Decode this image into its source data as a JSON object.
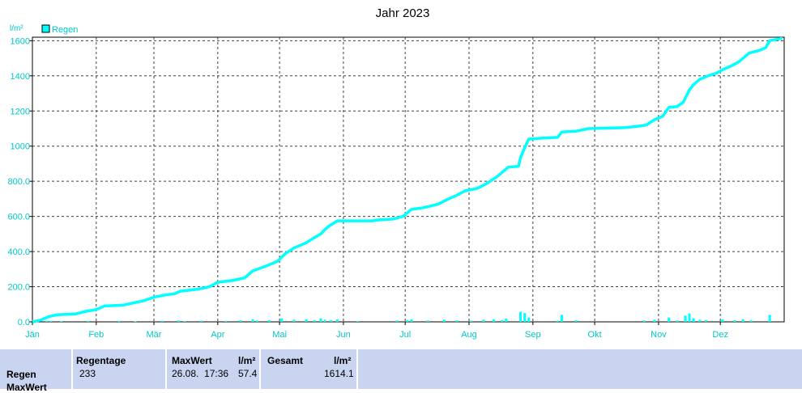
{
  "chart_data": {
    "type": "line",
    "title": "Jahr 2023",
    "ylabel": "l/m²",
    "legend": {
      "label": "Regen",
      "position": "top-left"
    },
    "series_name": "Regen",
    "x_tick_labels": [
      "Jän",
      "Feb",
      "Mär",
      "Apr",
      "Mai",
      "Jun",
      "Jul",
      "Aug",
      "Sep",
      "Okt",
      "Nov",
      "Dez"
    ],
    "y_tick_labels": [
      "0.0",
      "200.0",
      "400.0",
      "600.0",
      "800.0",
      "1000",
      "1200",
      "1400",
      "1600"
    ],
    "ylim": [
      0,
      1620
    ],
    "grid": true,
    "colors": {
      "series": "#00ffff",
      "axis_text": "#00c8c8",
      "grid": "#404040"
    },
    "cumulative_points": [
      [
        "2023-01-01",
        0
      ],
      [
        "2023-01-05",
        10
      ],
      [
        "2023-01-09",
        30
      ],
      [
        "2023-01-13",
        40
      ],
      [
        "2023-01-22",
        45
      ],
      [
        "2023-01-27",
        60
      ],
      [
        "2023-02-01",
        70
      ],
      [
        "2023-02-05",
        90
      ],
      [
        "2023-02-14",
        95
      ],
      [
        "2023-02-18",
        105
      ],
      [
        "2023-02-24",
        120
      ],
      [
        "2023-03-01",
        140
      ],
      [
        "2023-03-05",
        150
      ],
      [
        "2023-03-11",
        160
      ],
      [
        "2023-03-14",
        175
      ],
      [
        "2023-03-22",
        185
      ],
      [
        "2023-03-28",
        200
      ],
      [
        "2023-04-01",
        225
      ],
      [
        "2023-04-08",
        235
      ],
      [
        "2023-04-14",
        250
      ],
      [
        "2023-04-18",
        290
      ],
      [
        "2023-04-25",
        320
      ],
      [
        "2023-04-30",
        345
      ],
      [
        "2023-05-04",
        390
      ],
      [
        "2023-05-08",
        420
      ],
      [
        "2023-05-14",
        450
      ],
      [
        "2023-05-18",
        480
      ],
      [
        "2023-05-21",
        500
      ],
      [
        "2023-05-23",
        525
      ],
      [
        "2023-05-25",
        545
      ],
      [
        "2023-05-29",
        575
      ],
      [
        "2023-06-15",
        575
      ],
      [
        "2023-06-18",
        580
      ],
      [
        "2023-06-25",
        585
      ],
      [
        "2023-06-30",
        600
      ],
      [
        "2023-07-04",
        640
      ],
      [
        "2023-07-10",
        650
      ],
      [
        "2023-07-17",
        670
      ],
      [
        "2023-07-22",
        700
      ],
      [
        "2023-07-26",
        720
      ],
      [
        "2023-07-30",
        745
      ],
      [
        "2023-08-05",
        760
      ],
      [
        "2023-08-10",
        790
      ],
      [
        "2023-08-15",
        830
      ],
      [
        "2023-08-18",
        860
      ],
      [
        "2023-08-20",
        880
      ],
      [
        "2023-08-25",
        885
      ],
      [
        "2023-08-26",
        935
      ],
      [
        "2023-08-28",
        990
      ],
      [
        "2023-08-30",
        1040
      ],
      [
        "2023-09-05",
        1045
      ],
      [
        "2023-09-13",
        1050
      ],
      [
        "2023-09-15",
        1080
      ],
      [
        "2023-09-22",
        1085
      ],
      [
        "2023-09-28",
        1100
      ],
      [
        "2023-10-15",
        1105
      ],
      [
        "2023-10-20",
        1110
      ],
      [
        "2023-10-26",
        1120
      ],
      [
        "2023-10-30",
        1150
      ],
      [
        "2023-11-03",
        1170
      ],
      [
        "2023-11-06",
        1220
      ],
      [
        "2023-11-10",
        1225
      ],
      [
        "2023-11-13",
        1250
      ],
      [
        "2023-11-16",
        1320
      ],
      [
        "2023-11-18",
        1350
      ],
      [
        "2023-11-21",
        1380
      ],
      [
        "2023-11-25",
        1400
      ],
      [
        "2023-11-29",
        1415
      ],
      [
        "2023-12-03",
        1440
      ],
      [
        "2023-12-06",
        1455
      ],
      [
        "2023-12-10",
        1480
      ],
      [
        "2023-12-15",
        1530
      ],
      [
        "2023-12-20",
        1545
      ],
      [
        "2023-12-23",
        1560
      ],
      [
        "2023-12-25",
        1600
      ],
      [
        "2023-12-31",
        1614
      ]
    ],
    "daily_points": [
      [
        "2023-01-08",
        6
      ],
      [
        "2023-01-10",
        5
      ],
      [
        "2023-01-15",
        4
      ],
      [
        "2023-01-28",
        5
      ],
      [
        "2023-02-12",
        6
      ],
      [
        "2023-02-20",
        3
      ],
      [
        "2023-03-05",
        6
      ],
      [
        "2023-03-13",
        8
      ],
      [
        "2023-03-16",
        5
      ],
      [
        "2023-03-24",
        7
      ],
      [
        "2023-04-05",
        6
      ],
      [
        "2023-04-12",
        10
      ],
      [
        "2023-04-18",
        14
      ],
      [
        "2023-04-20",
        8
      ],
      [
        "2023-04-26",
        10
      ],
      [
        "2023-05-02",
        20
      ],
      [
        "2023-05-08",
        12
      ],
      [
        "2023-05-14",
        15
      ],
      [
        "2023-05-18",
        9
      ],
      [
        "2023-05-21",
        20
      ],
      [
        "2023-05-23",
        12
      ],
      [
        "2023-05-26",
        10
      ],
      [
        "2023-05-29",
        14
      ],
      [
        "2023-06-08",
        5
      ],
      [
        "2023-06-27",
        8
      ],
      [
        "2023-07-02",
        10
      ],
      [
        "2023-07-04",
        15
      ],
      [
        "2023-07-12",
        8
      ],
      [
        "2023-07-20",
        12
      ],
      [
        "2023-07-26",
        9
      ],
      [
        "2023-08-02",
        7
      ],
      [
        "2023-08-08",
        12
      ],
      [
        "2023-08-13",
        15
      ],
      [
        "2023-08-17",
        10
      ],
      [
        "2023-08-19",
        18
      ],
      [
        "2023-08-26",
        57.4
      ],
      [
        "2023-08-28",
        50
      ],
      [
        "2023-08-30",
        25
      ],
      [
        "2023-09-13",
        7
      ],
      [
        "2023-09-15",
        40
      ],
      [
        "2023-09-22",
        10
      ],
      [
        "2023-10-25",
        8
      ],
      [
        "2023-10-30",
        12
      ],
      [
        "2023-11-06",
        25
      ],
      [
        "2023-11-10",
        8
      ],
      [
        "2023-11-14",
        35
      ],
      [
        "2023-11-16",
        48
      ],
      [
        "2023-11-18",
        20
      ],
      [
        "2023-11-21",
        12
      ],
      [
        "2023-11-24",
        10
      ],
      [
        "2023-12-02",
        14
      ],
      [
        "2023-12-08",
        10
      ],
      [
        "2023-12-12",
        15
      ],
      [
        "2023-12-16",
        8
      ],
      [
        "2023-12-25",
        40
      ]
    ]
  },
  "stats": {
    "regentage_header": "Regentage",
    "regentage_value": "233",
    "maxwert_header": "MaxWert",
    "maxwert_unit": "l/m²",
    "maxwert_datetime": "26.08.  17:36",
    "maxwert_value": "57.4",
    "gesamt_header": "Gesamt",
    "gesamt_unit": "l/m²",
    "gesamt_value": "1614.1",
    "row_label_regen": "Regen",
    "row_label_maxwert": "MaxWert"
  }
}
